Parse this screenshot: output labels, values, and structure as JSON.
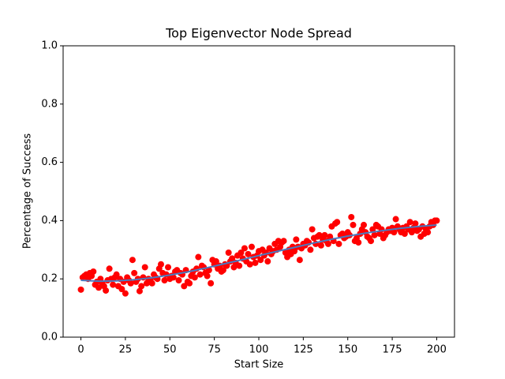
{
  "chart_data": {
    "type": "scatter",
    "title": "Top Eigenvector Node Spread",
    "x_label": "Start Size",
    "y_label": "Percentage of Success",
    "xlim": [
      -10,
      210
    ],
    "ylim": [
      0,
      1
    ],
    "xticks": [
      0,
      25,
      50,
      75,
      100,
      125,
      150,
      175,
      200
    ],
    "yticks": [
      {
        "value": 0,
        "label": "0.0"
      },
      {
        "value": 0.2,
        "label": "0.2"
      },
      {
        "value": 0.4,
        "label": "0.4"
      },
      {
        "value": 0.6,
        "label": "0.6"
      },
      {
        "value": 0.8,
        "label": "0.8"
      },
      {
        "value": 1,
        "label": "1.0"
      }
    ],
    "series": [
      {
        "type": "scatter",
        "color": "#ff0000",
        "x": [
          0,
          1,
          2,
          3,
          4,
          5,
          6,
          7,
          8,
          9,
          10,
          11,
          12,
          13,
          14,
          15,
          16,
          17,
          18,
          19,
          20,
          21,
          22,
          23,
          24,
          25,
          26,
          27,
          28,
          29,
          30,
          31,
          32,
          33,
          34,
          35,
          36,
          37,
          38,
          39,
          40,
          41,
          42,
          43,
          44,
          45,
          46,
          47,
          48,
          49,
          50,
          51,
          52,
          53,
          54,
          55,
          56,
          57,
          58,
          59,
          60,
          61,
          62,
          63,
          64,
          65,
          66,
          67,
          68,
          69,
          70,
          71,
          72,
          73,
          74,
          75,
          76,
          77,
          78,
          79,
          80,
          81,
          82,
          83,
          84,
          85,
          86,
          87,
          88,
          89,
          90,
          91,
          92,
          93,
          94,
          95,
          96,
          97,
          98,
          99,
          100,
          101,
          102,
          103,
          104,
          105,
          106,
          107,
          108,
          109,
          110,
          111,
          112,
          113,
          114,
          115,
          116,
          117,
          118,
          119,
          120,
          121,
          122,
          123,
          124,
          125,
          126,
          127,
          128,
          129,
          130,
          131,
          132,
          133,
          134,
          135,
          136,
          137,
          138,
          139,
          140,
          141,
          142,
          143,
          144,
          145,
          146,
          147,
          148,
          149,
          150,
          151,
          152,
          153,
          154,
          155,
          156,
          157,
          158,
          159,
          160,
          161,
          162,
          163,
          164,
          165,
          166,
          167,
          168,
          169,
          170,
          171,
          172,
          173,
          174,
          175,
          176,
          177,
          178,
          179,
          180,
          181,
          182,
          183,
          184,
          185,
          186,
          187,
          188,
          189,
          190,
          191,
          192,
          193,
          194,
          195,
          196,
          197,
          198,
          199,
          200
        ],
        "values": [
          0.163,
          0.205,
          0.21,
          0.215,
          0.2,
          0.22,
          0.21,
          0.225,
          0.18,
          0.19,
          0.17,
          0.2,
          0.185,
          0.175,
          0.16,
          0.195,
          0.235,
          0.2,
          0.18,
          0.205,
          0.215,
          0.175,
          0.2,
          0.165,
          0.19,
          0.15,
          0.205,
          0.195,
          0.185,
          0.265,
          0.22,
          0.19,
          0.2,
          0.158,
          0.175,
          0.205,
          0.24,
          0.185,
          0.2,
          0.195,
          0.185,
          0.215,
          0.205,
          0.2,
          0.235,
          0.25,
          0.22,
          0.195,
          0.215,
          0.24,
          0.2,
          0.21,
          0.205,
          0.225,
          0.23,
          0.195,
          0.22,
          0.215,
          0.175,
          0.23,
          0.19,
          0.185,
          0.21,
          0.225,
          0.205,
          0.235,
          0.275,
          0.215,
          0.245,
          0.24,
          0.22,
          0.21,
          0.23,
          0.185,
          0.265,
          0.25,
          0.26,
          0.235,
          0.245,
          0.225,
          0.23,
          0.25,
          0.245,
          0.29,
          0.26,
          0.27,
          0.24,
          0.255,
          0.28,
          0.245,
          0.29,
          0.27,
          0.305,
          0.26,
          0.285,
          0.25,
          0.31,
          0.275,
          0.255,
          0.28,
          0.295,
          0.265,
          0.3,
          0.28,
          0.29,
          0.26,
          0.305,
          0.285,
          0.295,
          0.32,
          0.3,
          0.33,
          0.31,
          0.325,
          0.33,
          0.29,
          0.275,
          0.3,
          0.285,
          0.31,
          0.295,
          0.335,
          0.31,
          0.265,
          0.305,
          0.32,
          0.315,
          0.33,
          0.325,
          0.3,
          0.37,
          0.34,
          0.32,
          0.345,
          0.35,
          0.315,
          0.335,
          0.35,
          0.33,
          0.32,
          0.345,
          0.38,
          0.33,
          0.39,
          0.395,
          0.32,
          0.35,
          0.355,
          0.34,
          0.345,
          0.36,
          0.35,
          0.412,
          0.385,
          0.33,
          0.34,
          0.325,
          0.355,
          0.37,
          0.385,
          0.36,
          0.345,
          0.34,
          0.33,
          0.37,
          0.35,
          0.385,
          0.38,
          0.355,
          0.37,
          0.34,
          0.35,
          0.36,
          0.37,
          0.365,
          0.375,
          0.36,
          0.405,
          0.38,
          0.37,
          0.36,
          0.375,
          0.355,
          0.38,
          0.37,
          0.395,
          0.36,
          0.375,
          0.39,
          0.365,
          0.37,
          0.345,
          0.38,
          0.355,
          0.37,
          0.36,
          0.38,
          0.395,
          0.385,
          0.4,
          0.4
        ]
      },
      {
        "type": "line",
        "color": "#4a7ac0",
        "x": [
          0,
          10,
          20,
          30,
          40,
          50,
          60,
          70,
          80,
          90,
          100,
          110,
          120,
          130,
          140,
          150,
          160,
          170,
          180,
          190,
          200
        ],
        "values": [
          0.195,
          0.192,
          0.193,
          0.197,
          0.204,
          0.213,
          0.224,
          0.237,
          0.251,
          0.265,
          0.28,
          0.294,
          0.308,
          0.322,
          0.335,
          0.347,
          0.357,
          0.366,
          0.374,
          0.38,
          0.385
        ]
      }
    ]
  }
}
